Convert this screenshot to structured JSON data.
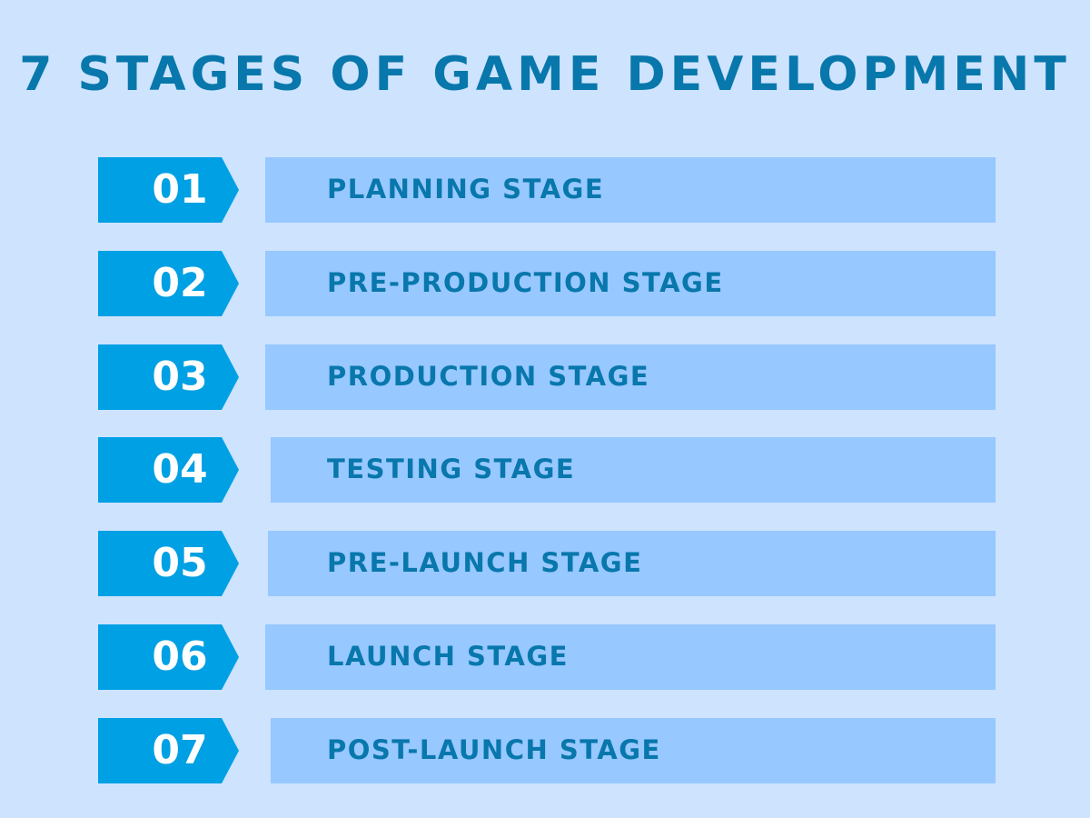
{
  "title": "7 STAGES OF GAME DEVELOPMENT",
  "colors": {
    "background": "#cde3fe",
    "accent": "#00a0e4",
    "label_box": "#97c8ff",
    "text": "#0877ac"
  },
  "stages": [
    {
      "number": "01",
      "label": "PLANNING STAGE"
    },
    {
      "number": "02",
      "label": "PRE-PRODUCTION STAGE"
    },
    {
      "number": "03",
      "label": "PRODUCTION STAGE"
    },
    {
      "number": "04",
      "label": "TESTING STAGE"
    },
    {
      "number": "05",
      "label": "PRE-LAUNCH STAGE"
    },
    {
      "number": "06",
      "label": "LAUNCH STAGE"
    },
    {
      "number": "07",
      "label": "POST-LAUNCH STAGE"
    }
  ]
}
